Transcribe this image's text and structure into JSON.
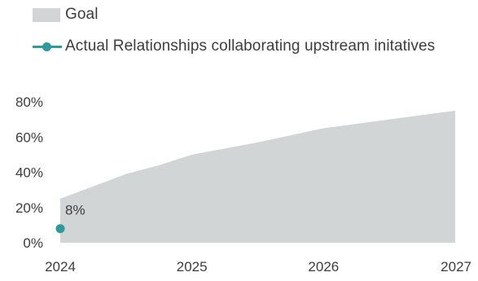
{
  "chart_data": {
    "type": "area",
    "title": "",
    "xlabel": "",
    "ylabel": "",
    "x_ticks": [
      "2024",
      "2025",
      "2026",
      "2027"
    ],
    "y_ticks": [
      "80%",
      "60%",
      "40%",
      "20%",
      "0%"
    ],
    "ylim": [
      0,
      80
    ],
    "xlim": [
      2024,
      2027
    ],
    "grid": false,
    "legend_placement": "top-left",
    "series": [
      {
        "name": "Goal",
        "kind": "area",
        "color": "#d2d5d5",
        "x": [
          2024.0,
          2024.25,
          2024.5,
          2024.75,
          2025.0,
          2025.5,
          2026.0,
          2026.5,
          2027.0
        ],
        "values": [
          25,
          32,
          39,
          44,
          50,
          57,
          65,
          70,
          75
        ]
      },
      {
        "name": "Actual Relationships collaborating upstream initatives",
        "kind": "line",
        "color": "#2f9a9a",
        "x": [
          2024.0
        ],
        "values": [
          8
        ],
        "labels": [
          "8%"
        ]
      }
    ]
  },
  "legend": {
    "goal": "Goal",
    "actual": "Actual Relationships collaborating upstream initatives"
  }
}
